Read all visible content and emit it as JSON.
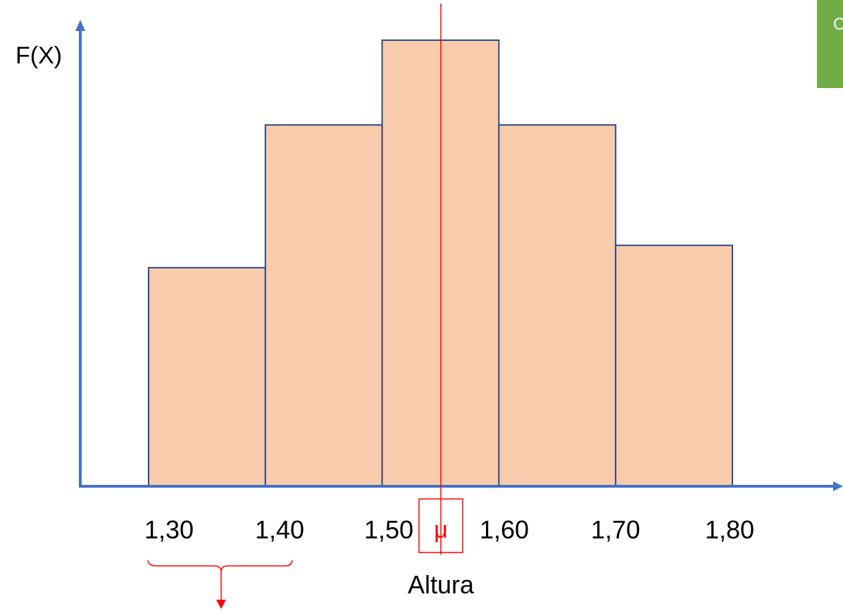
{
  "colors": {
    "axis": "#4472C4",
    "bar_fill": "#F8CBAD",
    "bar_stroke": "#2F4A86",
    "mean_line": "#FF0000",
    "bracket": "#FF0000",
    "corner_box": "#70AD47",
    "text": "#000000"
  },
  "chart_data": {
    "type": "bar",
    "ylabel": "F(X)",
    "xlabel": "Altura",
    "x_ticks": [
      "1,30",
      "1,40",
      "1,50",
      "1,60",
      "1,70",
      "1,80"
    ],
    "bins": [
      {
        "from": 1.3,
        "to": 1.4,
        "height": 0.49
      },
      {
        "from": 1.4,
        "to": 1.5,
        "height": 0.81
      },
      {
        "from": 1.5,
        "to": 1.6,
        "height": 1.0
      },
      {
        "from": 1.6,
        "to": 1.7,
        "height": 0.81
      },
      {
        "from": 1.7,
        "to": 1.8,
        "height": 0.54
      }
    ],
    "ylim": [
      0,
      1.07
    ],
    "mean": {
      "label": "μ",
      "value": 1.55
    },
    "bracket": {
      "from": 1.3,
      "to": 1.4
    },
    "corner_box_text": "C"
  }
}
